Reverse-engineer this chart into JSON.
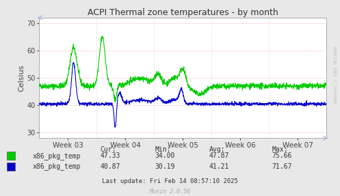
{
  "title": "ACPI Thermal zone temperatures - by month",
  "ylabel": "Celsius",
  "ylim": [
    28,
    72
  ],
  "yticks": [
    30,
    40,
    50,
    60,
    70
  ],
  "week_labels": [
    "Week 03",
    "Week 04",
    "Week 05",
    "Week 06",
    "Week 07"
  ],
  "bg_color": "#e8e8e8",
  "plot_bg_color": "#ffffff",
  "grid_color_h": "#ff9999",
  "grid_color_v": "#cccccc",
  "line_color_green": "#00cc00",
  "line_color_blue": "#0000cc",
  "title_color": "#333333",
  "legend_items": [
    "x86_pkg_temp",
    "x86_pkg_temp"
  ],
  "cur_vals": [
    "47.33",
    "40.87"
  ],
  "min_vals": [
    "34.00",
    "30.19"
  ],
  "avg_vals": [
    "47.87",
    "41.21"
  ],
  "max_vals": [
    "75.66",
    "71.67"
  ],
  "last_update": "Last update: Fri Feb 14 08:57:10 2025",
  "munin_version": "Munin 2.0.56",
  "watermark": "RRDTOOL / TOBI OETIKER"
}
